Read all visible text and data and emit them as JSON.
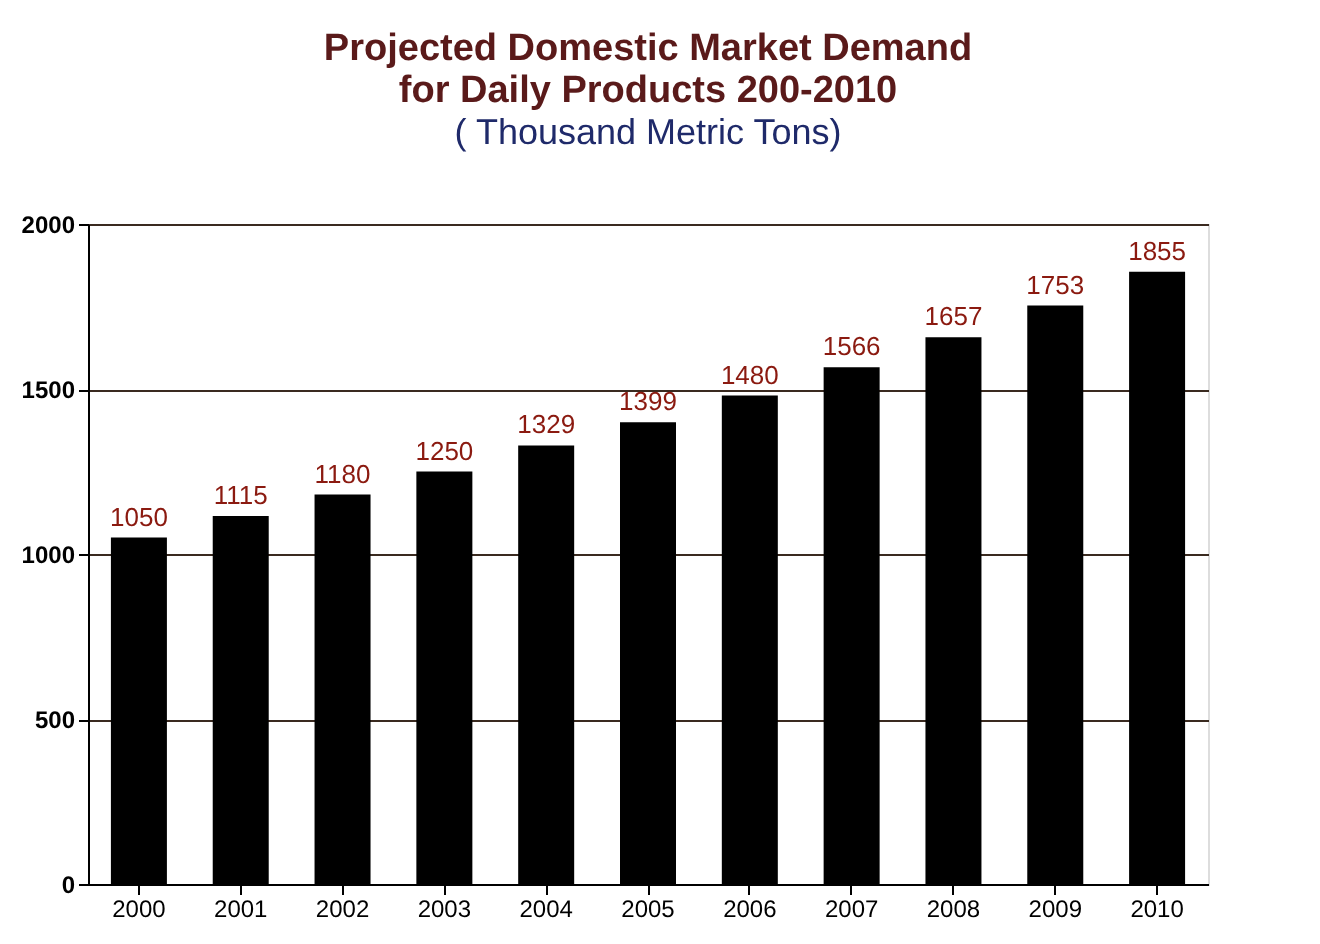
{
  "chart_data": {
    "type": "bar",
    "title": "Projected Domestic Market Demand\nfor Daily Products 200-2010",
    "subtitle": "( Thousand Metric Tons)",
    "categories": [
      "2000",
      "2001",
      "2002",
      "2003",
      "2004",
      "2005",
      "2006",
      "2007",
      "2008",
      "2009",
      "2010"
    ],
    "values": [
      1050,
      1115,
      1180,
      1250,
      1329,
      1399,
      1480,
      1566,
      1657,
      1753,
      1855
    ],
    "color": "#000000",
    "data_labels": true,
    "ylim": [
      0,
      2000
    ],
    "yticks": [
      0,
      500,
      1000,
      1500,
      2000
    ],
    "grid": "y"
  }
}
